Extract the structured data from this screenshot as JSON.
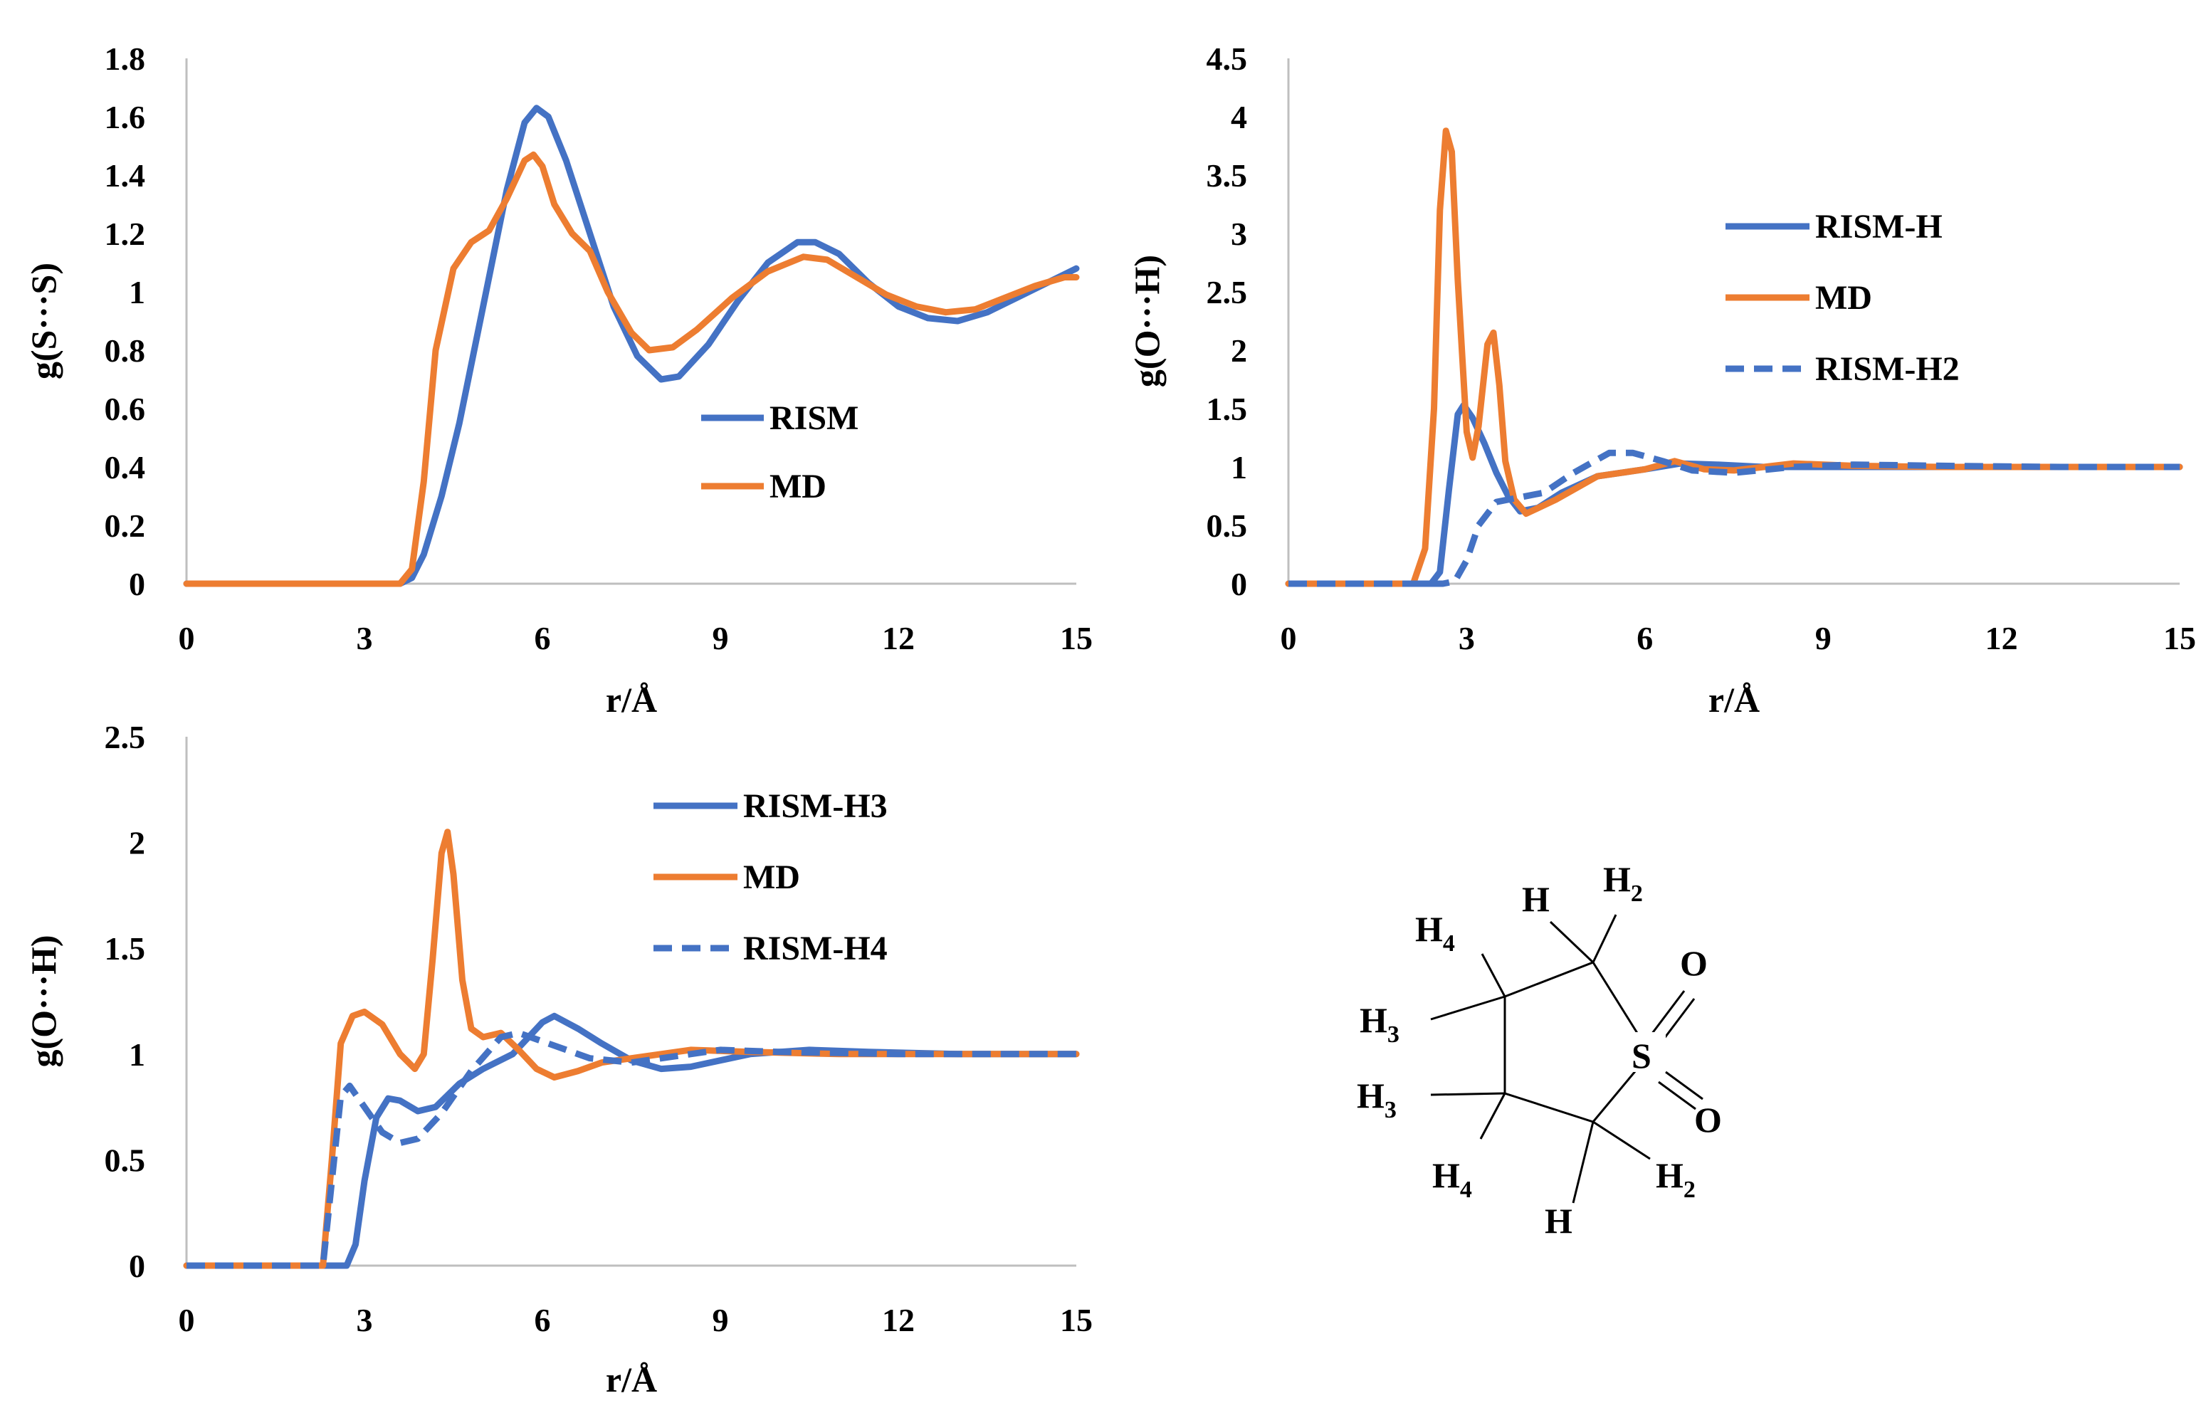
{
  "colors": {
    "blue": "#4472C4",
    "orange": "#ED7D31",
    "axis": "#bfbfbf"
  },
  "chart_data": [
    {
      "type": "line",
      "ylabel": "g(S···S)",
      "xlabel": "r/Å",
      "xlim": [
        0,
        15
      ],
      "ylim": [
        0,
        1.8
      ],
      "xticks": [
        0,
        3,
        6,
        9,
        12,
        15
      ],
      "yticks": [
        0,
        0.2,
        0.4,
        0.6,
        0.8,
        1,
        1.2,
        1.4,
        1.6,
        1.8
      ],
      "legend_position": "center-right",
      "series": [
        {
          "name": "RISM",
          "color": "blue",
          "dash": false,
          "points": [
            [
              0,
              0
            ],
            [
              3.6,
              0
            ],
            [
              3.8,
              0.02
            ],
            [
              4.0,
              0.1
            ],
            [
              4.3,
              0.3
            ],
            [
              4.6,
              0.55
            ],
            [
              5.0,
              0.95
            ],
            [
              5.4,
              1.35
            ],
            [
              5.7,
              1.58
            ],
            [
              5.9,
              1.63
            ],
            [
              6.1,
              1.6
            ],
            [
              6.4,
              1.45
            ],
            [
              6.8,
              1.2
            ],
            [
              7.2,
              0.95
            ],
            [
              7.6,
              0.78
            ],
            [
              8.0,
              0.7
            ],
            [
              8.3,
              0.71
            ],
            [
              8.8,
              0.82
            ],
            [
              9.3,
              0.97
            ],
            [
              9.8,
              1.1
            ],
            [
              10.3,
              1.17
            ],
            [
              10.6,
              1.17
            ],
            [
              11.0,
              1.13
            ],
            [
              11.5,
              1.03
            ],
            [
              12.0,
              0.95
            ],
            [
              12.5,
              0.91
            ],
            [
              13.0,
              0.9
            ],
            [
              13.5,
              0.93
            ],
            [
              14.0,
              0.98
            ],
            [
              14.5,
              1.03
            ],
            [
              15.0,
              1.08
            ]
          ]
        },
        {
          "name": "MD",
          "color": "orange",
          "dash": false,
          "points": [
            [
              0,
              0
            ],
            [
              3.6,
              0
            ],
            [
              3.8,
              0.05
            ],
            [
              4.0,
              0.35
            ],
            [
              4.2,
              0.8
            ],
            [
              4.5,
              1.08
            ],
            [
              4.8,
              1.17
            ],
            [
              5.1,
              1.21
            ],
            [
              5.4,
              1.32
            ],
            [
              5.7,
              1.45
            ],
            [
              5.85,
              1.47
            ],
            [
              6.0,
              1.43
            ],
            [
              6.2,
              1.3
            ],
            [
              6.5,
              1.2
            ],
            [
              6.8,
              1.14
            ],
            [
              7.1,
              1.0
            ],
            [
              7.5,
              0.86
            ],
            [
              7.8,
              0.8
            ],
            [
              8.2,
              0.81
            ],
            [
              8.6,
              0.87
            ],
            [
              9.2,
              0.98
            ],
            [
              9.8,
              1.07
            ],
            [
              10.4,
              1.12
            ],
            [
              10.8,
              1.11
            ],
            [
              11.3,
              1.05
            ],
            [
              11.8,
              0.99
            ],
            [
              12.3,
              0.95
            ],
            [
              12.8,
              0.93
            ],
            [
              13.3,
              0.94
            ],
            [
              13.8,
              0.98
            ],
            [
              14.3,
              1.02
            ],
            [
              14.8,
              1.05
            ],
            [
              15.0,
              1.05
            ]
          ]
        }
      ]
    },
    {
      "type": "line",
      "ylabel": "g(O···H)",
      "xlabel": "r/Å",
      "xlim": [
        0,
        15
      ],
      "ylim": [
        0,
        4.5
      ],
      "xticks": [
        0,
        3,
        6,
        9,
        12,
        15
      ],
      "yticks": [
        0,
        0.5,
        1,
        1.5,
        2,
        2.5,
        3,
        3.5,
        4,
        4.5
      ],
      "legend_position": "top-right",
      "series": [
        {
          "name": "RISM-H",
          "color": "blue",
          "dash": false,
          "points": [
            [
              0,
              0
            ],
            [
              2.4,
              0
            ],
            [
              2.55,
              0.1
            ],
            [
              2.7,
              0.8
            ],
            [
              2.85,
              1.45
            ],
            [
              2.95,
              1.53
            ],
            [
              3.1,
              1.42
            ],
            [
              3.3,
              1.2
            ],
            [
              3.5,
              0.95
            ],
            [
              3.7,
              0.75
            ],
            [
              3.9,
              0.62
            ],
            [
              4.2,
              0.65
            ],
            [
              4.6,
              0.78
            ],
            [
              5.2,
              0.92
            ],
            [
              6.0,
              0.98
            ],
            [
              6.6,
              1.03
            ],
            [
              7.2,
              1.02
            ],
            [
              8.0,
              1.0
            ],
            [
              9.0,
              1.0
            ],
            [
              11.0,
              1.0
            ],
            [
              13.0,
              1.0
            ],
            [
              15.0,
              1.0
            ]
          ]
        },
        {
          "name": "MD",
          "color": "orange",
          "dash": false,
          "points": [
            [
              0,
              0
            ],
            [
              2.1,
              0
            ],
            [
              2.3,
              0.3
            ],
            [
              2.45,
              1.5
            ],
            [
              2.55,
              3.2
            ],
            [
              2.65,
              3.88
            ],
            [
              2.75,
              3.7
            ],
            [
              2.85,
              2.6
            ],
            [
              3.0,
              1.3
            ],
            [
              3.1,
              1.08
            ],
            [
              3.2,
              1.35
            ],
            [
              3.35,
              2.05
            ],
            [
              3.45,
              2.15
            ],
            [
              3.55,
              1.7
            ],
            [
              3.65,
              1.05
            ],
            [
              3.8,
              0.72
            ],
            [
              4.0,
              0.6
            ],
            [
              4.5,
              0.72
            ],
            [
              5.2,
              0.92
            ],
            [
              6.0,
              0.98
            ],
            [
              6.5,
              1.05
            ],
            [
              7.0,
              0.98
            ],
            [
              7.5,
              0.97
            ],
            [
              8.5,
              1.03
            ],
            [
              9.5,
              1.01
            ],
            [
              11.0,
              1.0
            ],
            [
              13.0,
              1.0
            ],
            [
              15.0,
              1.0
            ]
          ]
        },
        {
          "name": "RISM-H2",
          "color": "blue",
          "dash": true,
          "points": [
            [
              0,
              0
            ],
            [
              2.6,
              0
            ],
            [
              2.8,
              0.02
            ],
            [
              3.0,
              0.2
            ],
            [
              3.2,
              0.5
            ],
            [
              3.5,
              0.7
            ],
            [
              3.9,
              0.74
            ],
            [
              4.3,
              0.78
            ],
            [
              4.8,
              0.95
            ],
            [
              5.4,
              1.12
            ],
            [
              5.8,
              1.12
            ],
            [
              6.3,
              1.05
            ],
            [
              6.8,
              0.97
            ],
            [
              7.5,
              0.95
            ],
            [
              8.5,
              1.0
            ],
            [
              9.5,
              1.02
            ],
            [
              11.0,
              1.01
            ],
            [
              13.0,
              1.0
            ],
            [
              15.0,
              1.0
            ]
          ]
        }
      ]
    },
    {
      "type": "line",
      "ylabel": "g(O···H)",
      "xlabel": "r/Å",
      "xlim": [
        0,
        15
      ],
      "ylim": [
        0,
        2.5
      ],
      "xticks": [
        0,
        3,
        6,
        9,
        12,
        15
      ],
      "yticks": [
        0,
        0.5,
        1,
        1.5,
        2,
        2.5
      ],
      "legend_position": "top-center",
      "series": [
        {
          "name": "RISM-H3",
          "color": "blue",
          "dash": false,
          "points": [
            [
              0,
              0
            ],
            [
              2.7,
              0
            ],
            [
              2.85,
              0.1
            ],
            [
              3.0,
              0.4
            ],
            [
              3.2,
              0.7
            ],
            [
              3.4,
              0.79
            ],
            [
              3.6,
              0.78
            ],
            [
              3.9,
              0.73
            ],
            [
              4.2,
              0.75
            ],
            [
              4.6,
              0.86
            ],
            [
              5.0,
              0.93
            ],
            [
              5.5,
              1.0
            ],
            [
              6.0,
              1.15
            ],
            [
              6.2,
              1.18
            ],
            [
              6.6,
              1.12
            ],
            [
              7.0,
              1.05
            ],
            [
              7.5,
              0.97
            ],
            [
              8.0,
              0.93
            ],
            [
              8.5,
              0.94
            ],
            [
              9.0,
              0.97
            ],
            [
              9.5,
              1.0
            ],
            [
              10.5,
              1.02
            ],
            [
              11.5,
              1.01
            ],
            [
              13.0,
              1.0
            ],
            [
              15.0,
              1.0
            ]
          ]
        },
        {
          "name": "MD",
          "color": "orange",
          "dash": false,
          "points": [
            [
              0,
              0
            ],
            [
              2.3,
              0
            ],
            [
              2.45,
              0.5
            ],
            [
              2.6,
              1.05
            ],
            [
              2.8,
              1.18
            ],
            [
              3.0,
              1.2
            ],
            [
              3.3,
              1.14
            ],
            [
              3.6,
              1.0
            ],
            [
              3.85,
              0.93
            ],
            [
              4.0,
              1.0
            ],
            [
              4.15,
              1.45
            ],
            [
              4.3,
              1.95
            ],
            [
              4.4,
              2.05
            ],
            [
              4.5,
              1.85
            ],
            [
              4.65,
              1.35
            ],
            [
              4.8,
              1.12
            ],
            [
              5.0,
              1.08
            ],
            [
              5.3,
              1.1
            ],
            [
              5.6,
              1.02
            ],
            [
              5.9,
              0.93
            ],
            [
              6.2,
              0.89
            ],
            [
              6.6,
              0.92
            ],
            [
              7.0,
              0.96
            ],
            [
              7.5,
              0.98
            ],
            [
              8.5,
              1.02
            ],
            [
              9.5,
              1.01
            ],
            [
              11.0,
              1.0
            ],
            [
              13.0,
              1.0
            ],
            [
              15.0,
              1.0
            ]
          ]
        },
        {
          "name": "RISM-H4",
          "color": "blue",
          "dash": true,
          "points": [
            [
              0,
              0
            ],
            [
              2.3,
              0
            ],
            [
              2.45,
              0.4
            ],
            [
              2.6,
              0.8
            ],
            [
              2.75,
              0.85
            ],
            [
              2.95,
              0.77
            ],
            [
              3.3,
              0.63
            ],
            [
              3.6,
              0.58
            ],
            [
              3.9,
              0.6
            ],
            [
              4.3,
              0.72
            ],
            [
              4.8,
              0.92
            ],
            [
              5.3,
              1.08
            ],
            [
              5.6,
              1.1
            ],
            [
              6.0,
              1.06
            ],
            [
              6.8,
              0.98
            ],
            [
              7.5,
              0.96
            ],
            [
              8.5,
              1.0
            ],
            [
              9.0,
              1.02
            ],
            [
              10.0,
              1.01
            ],
            [
              12.0,
              1.0
            ],
            [
              15.0,
              1.0
            ]
          ]
        }
      ]
    }
  ],
  "molecule": {
    "atoms": [
      "H",
      "H",
      "H",
      "H",
      "H",
      "H",
      "H",
      "H",
      "S",
      "O",
      "O"
    ],
    "subscripts": [
      "",
      "2",
      "4",
      "3",
      "3",
      "4",
      "2",
      "",
      "",
      "",
      ""
    ]
  }
}
